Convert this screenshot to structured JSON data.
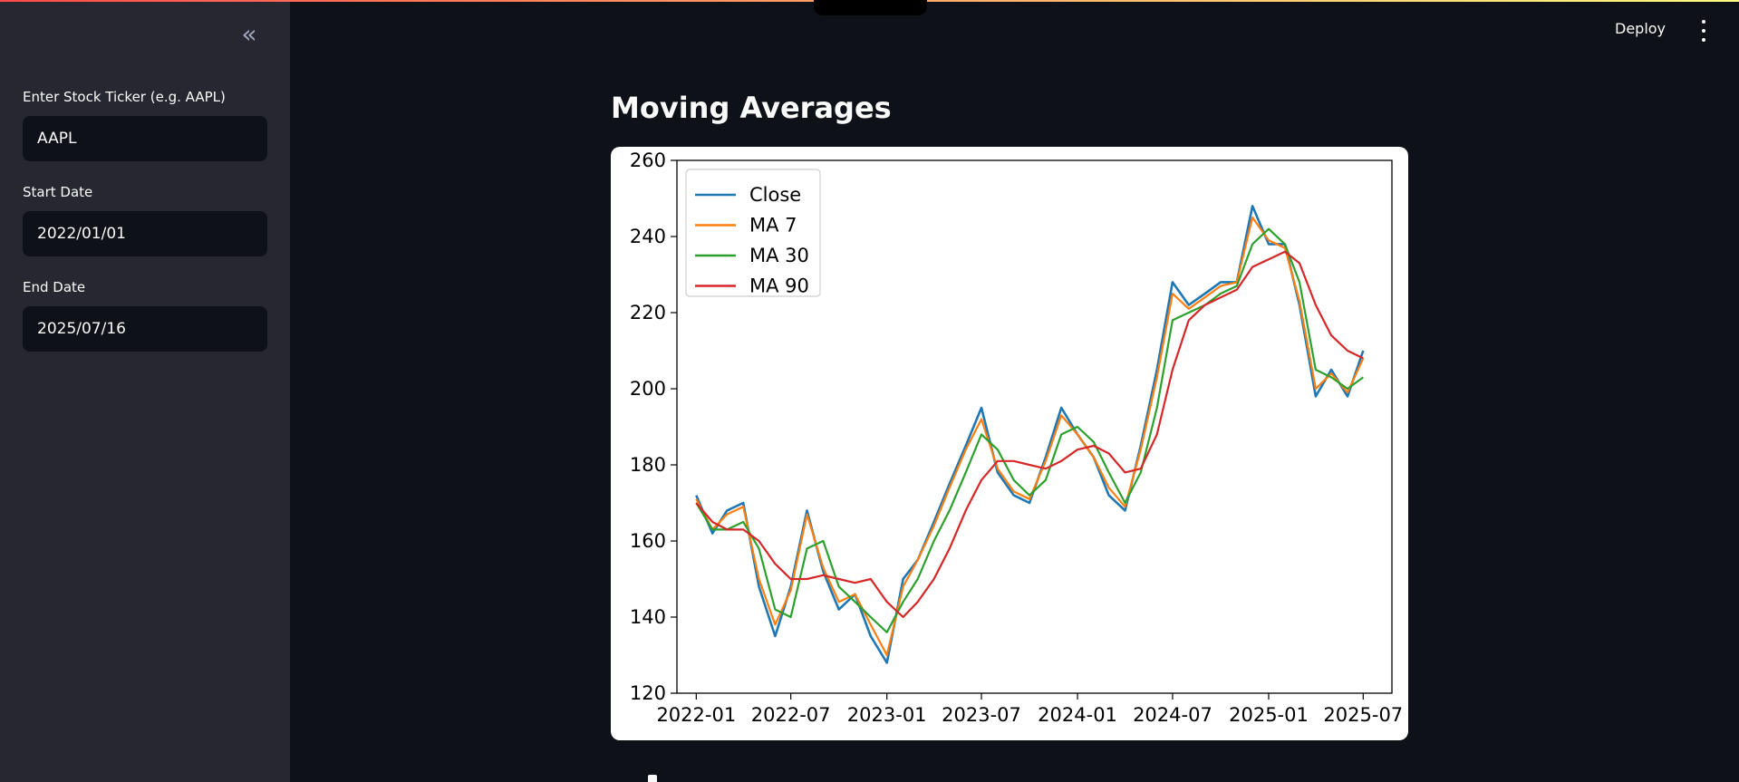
{
  "header": {
    "deploy_label": "Deploy"
  },
  "sidebar": {
    "collapse_icon": "chevron-double-left-icon",
    "ticker": {
      "label": "Enter Stock Ticker (e.g. AAPL)",
      "value": "AAPL"
    },
    "start_date": {
      "label": "Start Date",
      "value": "2022/01/01"
    },
    "end_date": {
      "label": "End Date",
      "value": "2025/07/16"
    }
  },
  "main": {
    "title": "Moving Averages"
  },
  "chart_data": {
    "type": "line",
    "title": "",
    "xlabel": "",
    "ylabel": "",
    "ylim": [
      120,
      260
    ],
    "yticks": [
      120,
      140,
      160,
      180,
      200,
      220,
      240,
      260
    ],
    "xlim": [
      "2021-11-25",
      "2025-08-25"
    ],
    "xticks": [
      "2022-01",
      "2022-07",
      "2023-01",
      "2023-07",
      "2024-01",
      "2024-07",
      "2025-01",
      "2025-07"
    ],
    "legend_position": "top-left",
    "grid": false,
    "colors": {
      "Close": "#1f77b4",
      "MA 7": "#ff7f0e",
      "MA 30": "#2ca02c",
      "MA 90": "#d62728"
    },
    "x": [
      "2022-01",
      "2022-02",
      "2022-03",
      "2022-04",
      "2022-05",
      "2022-06",
      "2022-07",
      "2022-08",
      "2022-09",
      "2022-10",
      "2022-11",
      "2022-12",
      "2023-01",
      "2023-02",
      "2023-03",
      "2023-04",
      "2023-05",
      "2023-06",
      "2023-07",
      "2023-08",
      "2023-09",
      "2023-10",
      "2023-11",
      "2023-12",
      "2024-01",
      "2024-02",
      "2024-03",
      "2024-04",
      "2024-05",
      "2024-06",
      "2024-07",
      "2024-08",
      "2024-09",
      "2024-10",
      "2024-11",
      "2024-12",
      "2025-01",
      "2025-02",
      "2025-03",
      "2025-04",
      "2025-05",
      "2025-06",
      "2025-07"
    ],
    "series": [
      {
        "name": "Close",
        "values": [
          172,
          162,
          168,
          170,
          148,
          135,
          148,
          168,
          152,
          142,
          146,
          135,
          128,
          150,
          155,
          165,
          175,
          185,
          195,
          178,
          172,
          170,
          182,
          195,
          188,
          182,
          172,
          168,
          185,
          205,
          228,
          222,
          225,
          228,
          228,
          248,
          238,
          238,
          222,
          198,
          205,
          198,
          210
        ]
      },
      {
        "name": "MA 7",
        "values": [
          171,
          163,
          167,
          169,
          150,
          138,
          147,
          167,
          153,
          144,
          146,
          138,
          130,
          148,
          155,
          164,
          174,
          184,
          192,
          179,
          173,
          171,
          181,
          193,
          188,
          182,
          174,
          169,
          184,
          203,
          225,
          221,
          224,
          227,
          228,
          245,
          239,
          237,
          223,
          200,
          204,
          199,
          208
        ]
      },
      {
        "name": "MA 30",
        "values": [
          170,
          163,
          163,
          165,
          158,
          142,
          140,
          158,
          160,
          148,
          144,
          140,
          136,
          144,
          150,
          160,
          168,
          178,
          188,
          184,
          176,
          172,
          176,
          188,
          190,
          186,
          178,
          170,
          178,
          195,
          218,
          220,
          222,
          225,
          227,
          238,
          242,
          238,
          228,
          205,
          203,
          200,
          203
        ]
      },
      {
        "name": "MA 90",
        "values": [
          170,
          165,
          163,
          163,
          160,
          154,
          150,
          150,
          151,
          150,
          149,
          150,
          144,
          140,
          144,
          150,
          158,
          168,
          176,
          181,
          181,
          180,
          179,
          181,
          184,
          185,
          183,
          178,
          179,
          188,
          205,
          218,
          222,
          224,
          226,
          232,
          234,
          236,
          233,
          222,
          214,
          210,
          208
        ]
      }
    ]
  }
}
